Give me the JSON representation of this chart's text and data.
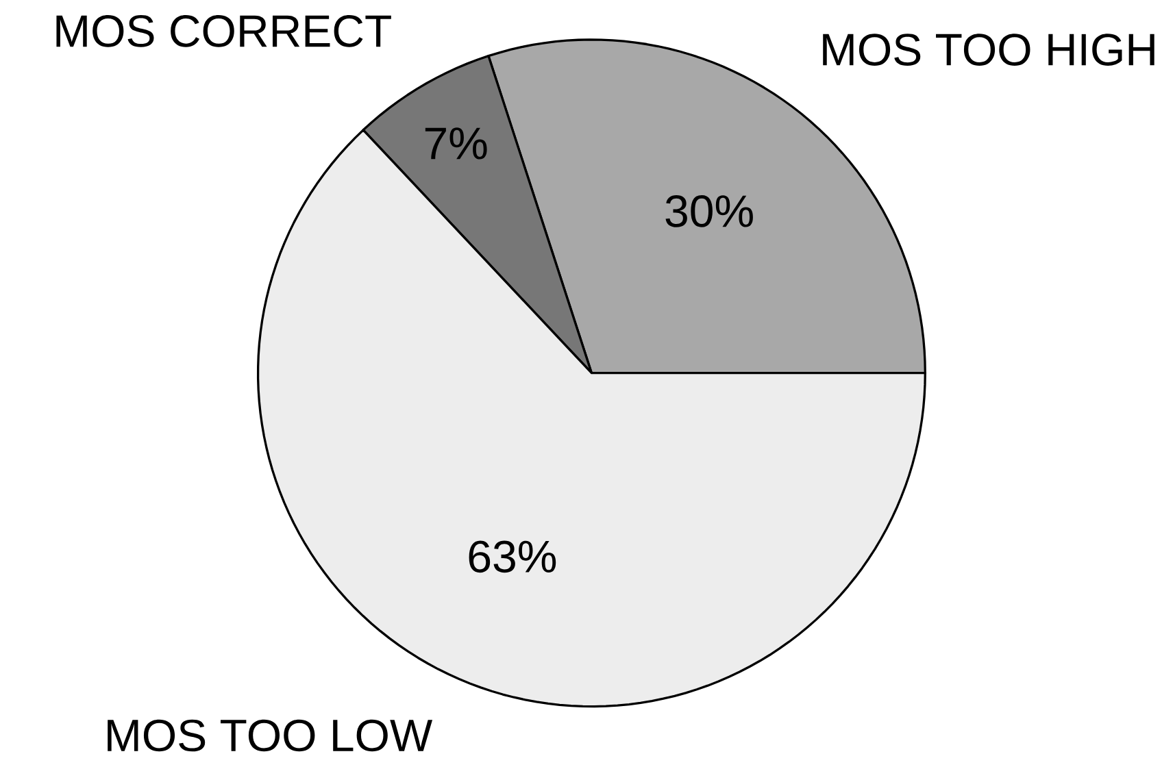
{
  "chart_data": {
    "type": "pie",
    "categories": [
      "MOS TOO HIGH",
      "MOS CORRECT",
      "MOS TOO LOW"
    ],
    "values": [
      30,
      7,
      63
    ],
    "colors": [
      "#a8a8a8",
      "#777777",
      "#ededed"
    ],
    "value_labels": [
      "30%",
      "7%",
      "63%"
    ]
  }
}
